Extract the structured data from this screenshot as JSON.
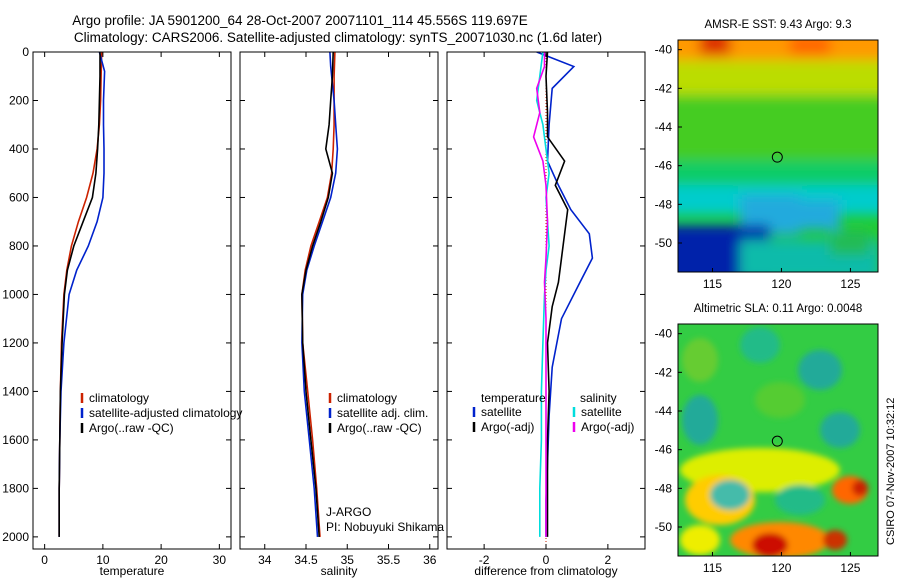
{
  "titles": {
    "line1": "Argo profile: JA 5901200_64 28-Oct-2007 20071101_114 45.556S 119.697E",
    "line2": "Climatology: CARS2006. Satellite-adjusted climatology: synTS_20071030.nc (1.6d later)"
  },
  "stamp": "CSIRO 07-Nov-2007 10:32:12",
  "chart_data": [
    {
      "type": "line",
      "xlabel": "temperature",
      "ylabel": "",
      "xlim": [
        -2,
        32
      ],
      "ylim": [
        2050,
        0
      ],
      "xticks": [
        0,
        10,
        20,
        30
      ],
      "yticks": [
        0,
        200,
        400,
        600,
        800,
        1000,
        1200,
        1400,
        1600,
        1800,
        2000
      ],
      "legend": [
        "climatology",
        "satellite-adjusted climatology",
        "Argo(..raw -QC)"
      ],
      "series": [
        {
          "name": "climatology",
          "color": "#cc2200",
          "x": [
            9.8,
            9.7,
            9.6,
            9.4,
            9.0,
            8.3,
            7.2,
            5.8,
            4.6,
            3.8,
            3.3,
            2.9,
            2.7,
            2.6,
            2.5,
            2.5
          ],
          "y": [
            0,
            100,
            200,
            300,
            400,
            500,
            600,
            700,
            800,
            900,
            1000,
            1200,
            1400,
            1600,
            1800,
            2000
          ]
        },
        {
          "name": "satellite-adjusted climatology",
          "color": "#0022cc",
          "x": [
            9.4,
            10.3,
            10.1,
            10.1,
            10.2,
            10.2,
            10.0,
            9.0,
            7.5,
            5.5,
            4.2,
            3.3,
            2.8,
            2.6,
            2.5,
            2.5
          ],
          "y": [
            0,
            80,
            200,
            300,
            400,
            500,
            600,
            700,
            800,
            900,
            1000,
            1200,
            1400,
            1600,
            1800,
            2000
          ]
        },
        {
          "name": "Argo(..raw -QC)",
          "color": "#000000",
          "x": [
            9.5,
            9.5,
            9.4,
            9.3,
            9.1,
            8.8,
            8.2,
            6.6,
            5.0,
            3.9,
            3.4,
            3.0,
            2.7,
            2.6,
            2.5,
            2.5
          ],
          "y": [
            0,
            100,
            200,
            300,
            400,
            500,
            600,
            700,
            800,
            900,
            1000,
            1200,
            1400,
            1600,
            1800,
            2000
          ]
        }
      ]
    },
    {
      "type": "line",
      "xlabel": "salinity",
      "ylabel": "",
      "xlim": [
        33.7,
        36.1
      ],
      "ylim": [
        2050,
        0
      ],
      "xticks": [
        34,
        34.5,
        35,
        35.5,
        36
      ],
      "xticklabels": [
        "34",
        "34.5",
        "35",
        "35.5",
        "36"
      ],
      "legend": [
        "climatology",
        "satellite adj. clim.",
        "Argo(..raw -QC)"
      ],
      "annotation": [
        "J-ARGO",
        "PI: Nobuyuki Shikama"
      ],
      "series": [
        {
          "name": "climatology",
          "color": "#cc2200",
          "x": [
            34.85,
            34.84,
            34.84,
            34.84,
            34.83,
            34.81,
            34.76,
            34.66,
            34.56,
            34.49,
            34.45,
            34.46,
            34.52,
            34.58,
            34.63,
            34.67
          ],
          "y": [
            0,
            100,
            200,
            300,
            400,
            500,
            600,
            700,
            800,
            900,
            1000,
            1200,
            1400,
            1600,
            1800,
            2000
          ]
        },
        {
          "name": "satellite adj. clim.",
          "color": "#0022cc",
          "x": [
            34.79,
            34.8,
            34.84,
            34.86,
            34.88,
            34.86,
            34.8,
            34.7,
            34.6,
            34.51,
            34.46,
            34.45,
            34.48,
            34.54,
            34.6,
            34.64
          ],
          "y": [
            0,
            60,
            200,
            300,
            400,
            500,
            600,
            700,
            800,
            900,
            1000,
            1200,
            1400,
            1600,
            1800,
            2000
          ]
        },
        {
          "name": "Argo(..raw -QC)",
          "color": "#000000",
          "x": [
            34.83,
            34.82,
            34.8,
            34.78,
            34.74,
            34.82,
            34.77,
            34.68,
            34.58,
            34.5,
            34.45,
            34.46,
            34.5,
            34.56,
            34.62,
            34.66
          ],
          "y": [
            0,
            100,
            200,
            300,
            400,
            500,
            600,
            700,
            800,
            900,
            1000,
            1200,
            1400,
            1600,
            1800,
            2000
          ]
        }
      ]
    },
    {
      "type": "line",
      "xlabel": "difference from climatology",
      "ylabel": "",
      "xlim": [
        -3.2,
        3.2
      ],
      "ylim": [
        2050,
        0
      ],
      "xticks": [
        -2,
        0,
        2
      ],
      "legend": [
        "temperature",
        "satellite",
        "Argo(-adj)",
        "salinity",
        "satellite",
        "Argo(-adj)"
      ],
      "series": [
        {
          "name": "temperature satellite",
          "color": "#0022cc",
          "x": [
            -0.3,
            0.9,
            0.2,
            0.1,
            0.05,
            0.4,
            0.8,
            1.4,
            1.5,
            1.1,
            0.5,
            0.2,
            0.1,
            0.05,
            0.0,
            0.0
          ],
          "y": [
            0,
            60,
            150,
            300,
            450,
            550,
            650,
            750,
            850,
            950,
            1100,
            1300,
            1500,
            1700,
            1850,
            2000
          ]
        },
        {
          "name": "temperature Argo(-adj)",
          "color": "#000000",
          "x": [
            0.05,
            0.0,
            0.05,
            0.05,
            0.6,
            0.3,
            0.7,
            0.6,
            0.5,
            0.4,
            0.2,
            0.05,
            0.1,
            0.05,
            0.05,
            0.05
          ],
          "y": [
            0,
            100,
            250,
            350,
            450,
            550,
            650,
            750,
            850,
            950,
            1050,
            1200,
            1400,
            1600,
            1800,
            2000
          ]
        },
        {
          "name": "salinity satellite",
          "color": "#00dddd",
          "x": [
            -0.1,
            -0.2,
            -0.3,
            -0.1,
            0.0,
            0.1,
            0.0,
            0.05,
            0.1,
            0.0,
            -0.05,
            -0.1,
            -0.15,
            -0.15,
            -0.2,
            -0.2
          ],
          "y": [
            0,
            100,
            200,
            300,
            400,
            500,
            600,
            700,
            800,
            900,
            1000,
            1200,
            1400,
            1600,
            1800,
            2000
          ]
        },
        {
          "name": "salinity Argo(-adj)",
          "color": "#ee00ee",
          "x": [
            -0.05,
            -0.05,
            -0.3,
            -0.2,
            -0.4,
            -0.1,
            0.0,
            0.05,
            0.0,
            -0.05,
            0.0,
            0.0,
            0.0,
            0.0,
            0.0,
            0.0
          ],
          "y": [
            0,
            60,
            150,
            250,
            350,
            450,
            550,
            700,
            850,
            950,
            1100,
            1250,
            1450,
            1650,
            1850,
            2000
          ]
        }
      ]
    },
    {
      "type": "heatmap",
      "title": "AMSR-E SST: 9.43 Argo: 9.3",
      "xlim": [
        112.5,
        127
      ],
      "ylim": [
        -51.5,
        -39.5
      ],
      "xticks": [
        115,
        120,
        125
      ],
      "yticks": [
        -40,
        -42,
        -44,
        -46,
        -48,
        -50
      ],
      "marker": {
        "x": 119.7,
        "y": -45.56
      }
    },
    {
      "type": "heatmap",
      "title": "Altimetric SLA: 0.11 Argo: 0.0048",
      "xlim": [
        112.5,
        127
      ],
      "ylim": [
        -51.5,
        -39.5
      ],
      "xticks": [
        115,
        120,
        125
      ],
      "yticks": [
        -40,
        -42,
        -44,
        -46,
        -48,
        -50
      ],
      "marker": {
        "x": 119.7,
        "y": -45.56
      }
    }
  ]
}
